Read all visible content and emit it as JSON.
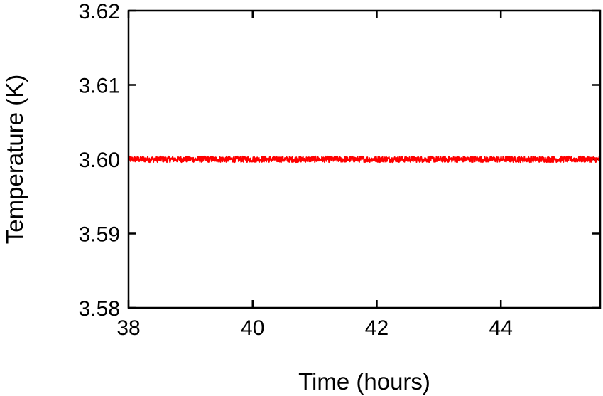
{
  "chart_data": {
    "type": "line",
    "title": "",
    "xlabel": "Time (hours)",
    "ylabel": "Temperature (K)",
    "xlim": [
      38,
      45.6
    ],
    "ylim": [
      3.58,
      3.62
    ],
    "xticks": [
      "38",
      "40",
      "42",
      "44"
    ],
    "yticks": [
      "3.58",
      "3.59",
      "3.60",
      "3.61",
      "3.62"
    ],
    "grid": false,
    "legend": "none",
    "series": [
      {
        "color": "#ff0000",
        "mean": 3.6,
        "noise_amplitude": 0.0004,
        "x_range": [
          38,
          45.6
        ]
      }
    ]
  }
}
